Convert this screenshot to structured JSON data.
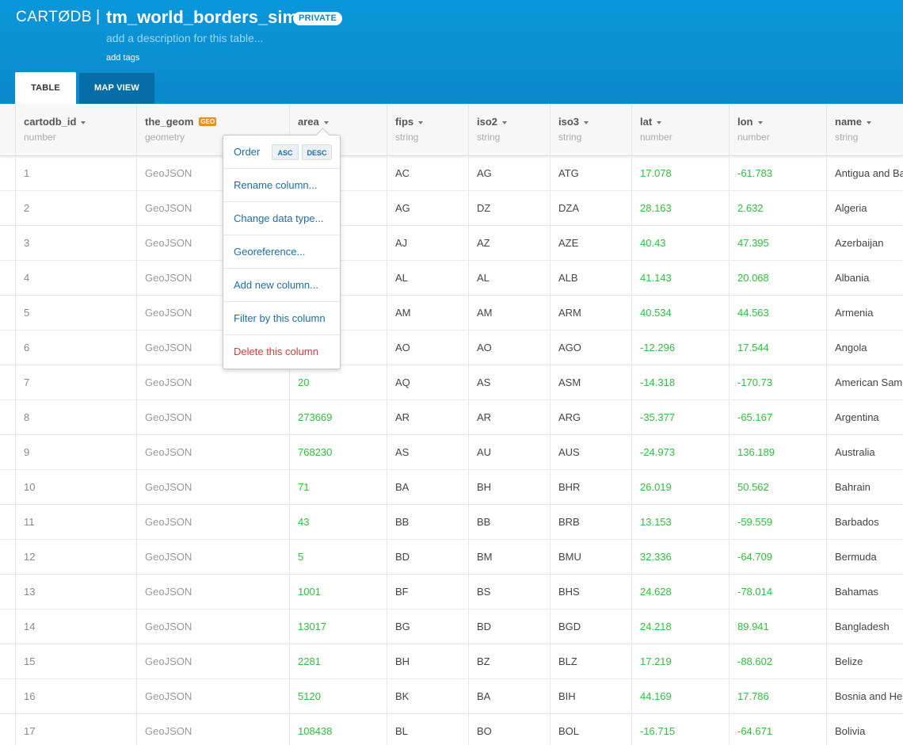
{
  "header": {
    "logo": "CARTØDB",
    "separator": "|",
    "table_title": "tm_world_borders_sim",
    "privacy": "PRIVATE",
    "description_placeholder": "add a description for this table...",
    "add_tags": "add tags",
    "tabs": [
      {
        "label": "TABLE",
        "active": true
      },
      {
        "label": "MAP VIEW",
        "active": false
      }
    ],
    "colors": {
      "header_bg": "#0a97db",
      "tab_inactive": "#066ea6"
    }
  },
  "columns": [
    {
      "name": "cartodb_id",
      "type": "number"
    },
    {
      "name": "the_geom",
      "type": "geometry",
      "badge": "GEO"
    },
    {
      "name": "area",
      "type": ""
    },
    {
      "name": "fips",
      "type": "string"
    },
    {
      "name": "iso2",
      "type": "string"
    },
    {
      "name": "iso3",
      "type": "string"
    },
    {
      "name": "lat",
      "type": "number"
    },
    {
      "name": "lon",
      "type": "number"
    },
    {
      "name": "name",
      "type": "string"
    }
  ],
  "rows": [
    [
      "1",
      "GeoJSON",
      "",
      "AC",
      "AG",
      "ATG",
      "17.078",
      "-61.783",
      "Antigua and Ba"
    ],
    [
      "2",
      "GeoJSON",
      "",
      "AG",
      "DZ",
      "DZA",
      "28.163",
      "2.632",
      "Algeria"
    ],
    [
      "3",
      "GeoJSON",
      "",
      "AJ",
      "AZ",
      "AZE",
      "40.43",
      "47.395",
      "Azerbaijan"
    ],
    [
      "4",
      "GeoJSON",
      "",
      "AL",
      "AL",
      "ALB",
      "41.143",
      "20.068",
      "Albania"
    ],
    [
      "5",
      "GeoJSON",
      "",
      "AM",
      "AM",
      "ARM",
      "40.534",
      "44.563",
      "Armenia"
    ],
    [
      "6",
      "GeoJSON",
      "",
      "AO",
      "AO",
      "AGO",
      "-12.296",
      "17.544",
      "Angola"
    ],
    [
      "7",
      "GeoJSON",
      "20",
      "AQ",
      "AS",
      "ASM",
      "-14.318",
      "-170.73",
      "American Sam"
    ],
    [
      "8",
      "GeoJSON",
      "273669",
      "AR",
      "AR",
      "ARG",
      "-35.377",
      "-65.167",
      "Argentina"
    ],
    [
      "9",
      "GeoJSON",
      "768230",
      "AS",
      "AU",
      "AUS",
      "-24.973",
      "136.189",
      "Australia"
    ],
    [
      "10",
      "GeoJSON",
      "71",
      "BA",
      "BH",
      "BHR",
      "26.019",
      "50.562",
      "Bahrain"
    ],
    [
      "11",
      "GeoJSON",
      "43",
      "BB",
      "BB",
      "BRB",
      "13.153",
      "-59.559",
      "Barbados"
    ],
    [
      "12",
      "GeoJSON",
      "5",
      "BD",
      "BM",
      "BMU",
      "32.336",
      "-64.709",
      "Bermuda"
    ],
    [
      "13",
      "GeoJSON",
      "1001",
      "BF",
      "BS",
      "BHS",
      "24.628",
      "-78.014",
      "Bahamas"
    ],
    [
      "14",
      "GeoJSON",
      "13017",
      "BG",
      "BD",
      "BGD",
      "24.218",
      "89.941",
      "Bangladesh"
    ],
    [
      "15",
      "GeoJSON",
      "2281",
      "BH",
      "BZ",
      "BLZ",
      "17.219",
      "-88.602",
      "Belize"
    ],
    [
      "16",
      "GeoJSON",
      "5120",
      "BK",
      "BA",
      "BIH",
      "44.169",
      "17.786",
      "Bosnia and He"
    ],
    [
      "17",
      "GeoJSON",
      "108438",
      "BL",
      "BO",
      "BOL",
      "-16.715",
      "-64.671",
      "Bolivia"
    ]
  ],
  "column_menu": {
    "order_label": "Order",
    "asc_label": "ASC",
    "desc_label": "DESC",
    "items": [
      "Rename column...",
      "Change data type...",
      "Georeference...",
      "Add new column...",
      "Filter by this column",
      "Delete this column"
    ],
    "colors": {
      "link": "#1b6fa8",
      "danger": "#e5363c"
    }
  }
}
